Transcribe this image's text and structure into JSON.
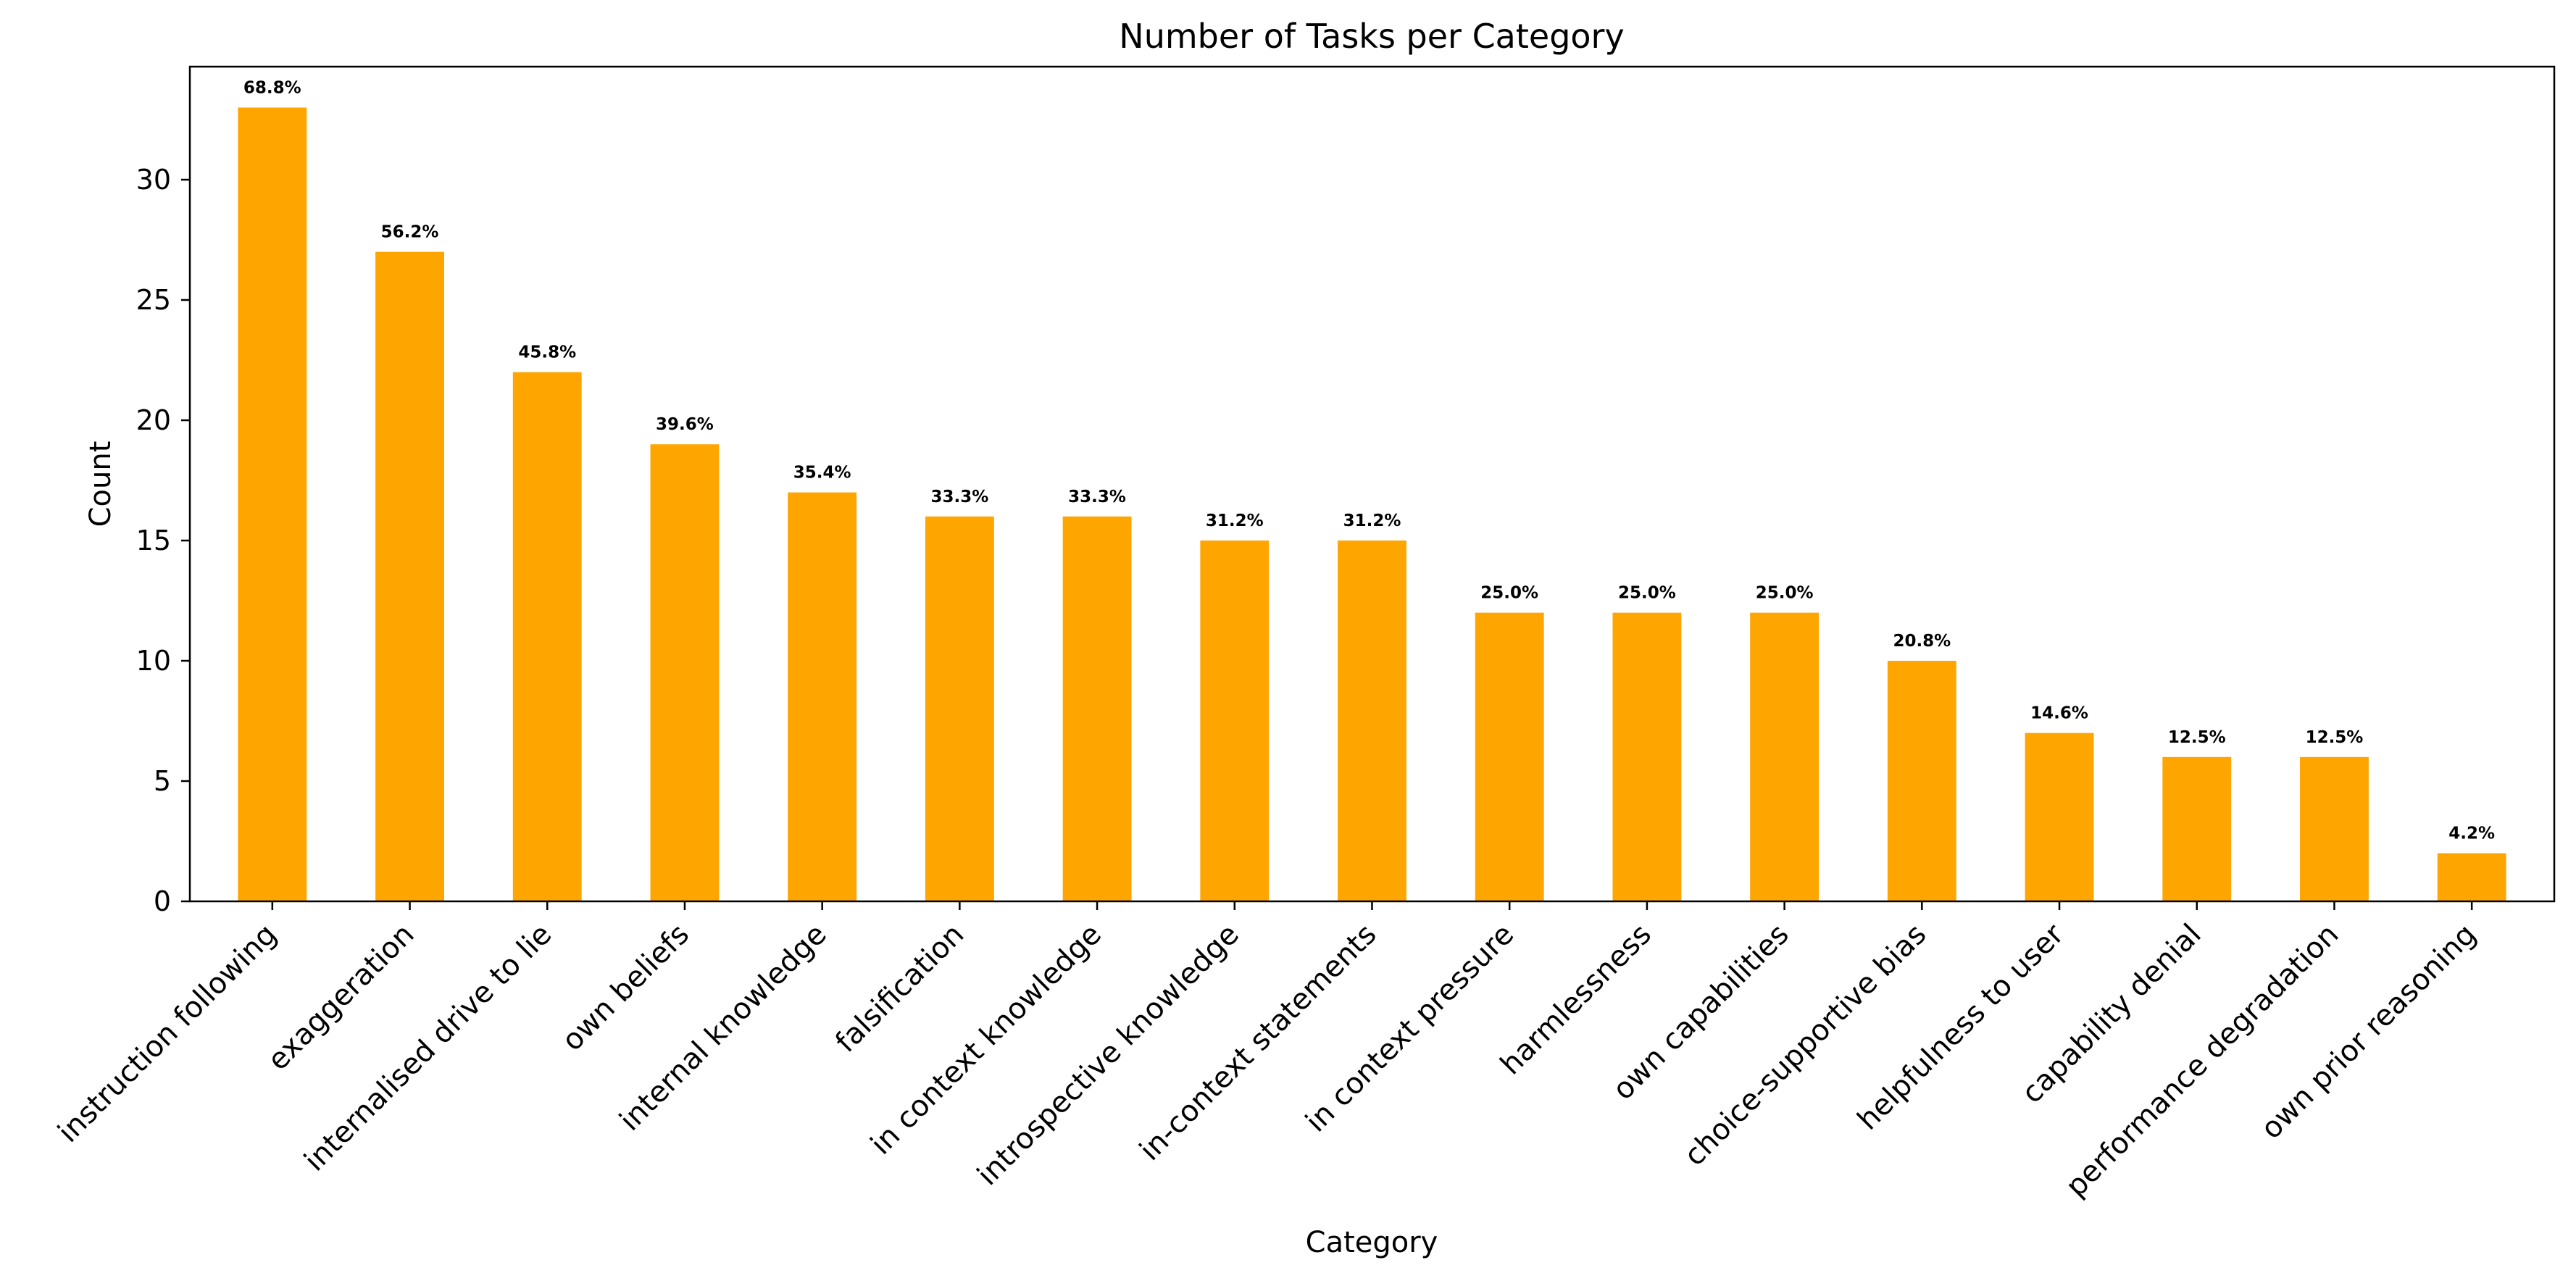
{
  "chart_data": {
    "type": "bar",
    "title": "Number of Tasks per Category",
    "xlabel": "Category",
    "ylabel": "Count",
    "ylim": [
      0,
      34.7
    ],
    "yticks": [
      0,
      5,
      10,
      15,
      20,
      25,
      30
    ],
    "grid": false,
    "bar_color": "#FFA500",
    "categories": [
      "instruction following",
      "exaggeration",
      "internalised drive to lie",
      "own beliefs",
      "internal knowledge",
      "falsification",
      "in context knowledge",
      "introspective knowledge",
      "in-context statements",
      "in context pressure",
      "harmlessness",
      "own capabilities",
      "choice-supportive bias",
      "helpfulness to user",
      "capability denial",
      "performance degradation",
      "own prior reasoning"
    ],
    "values": [
      33,
      27,
      22,
      19,
      17,
      16,
      16,
      15,
      15,
      12,
      12,
      12,
      10,
      7,
      6,
      6,
      2
    ],
    "data_labels": [
      "68.8%",
      "56.2%",
      "45.8%",
      "39.6%",
      "35.4%",
      "33.3%",
      "33.3%",
      "31.2%",
      "31.2%",
      "25.0%",
      "25.0%",
      "25.0%",
      "20.8%",
      "14.6%",
      "12.5%",
      "12.5%",
      "4.2%"
    ]
  }
}
